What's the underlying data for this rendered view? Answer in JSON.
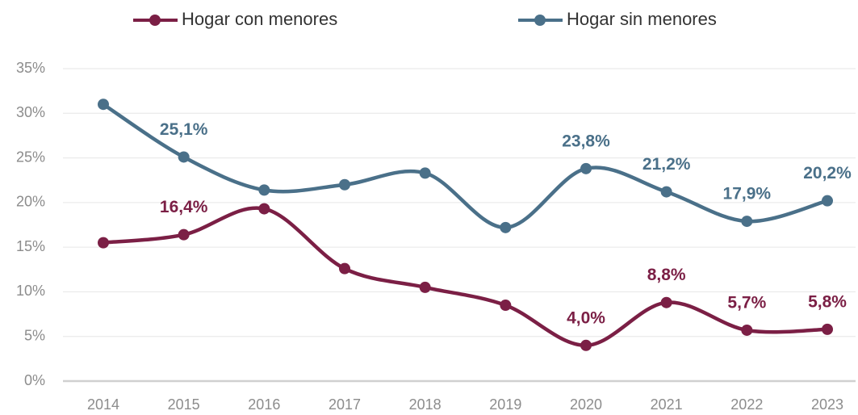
{
  "chart_data": {
    "type": "line",
    "categories": [
      "2014",
      "2015",
      "2016",
      "2017",
      "2018",
      "2019",
      "2020",
      "2021",
      "2022",
      "2023"
    ],
    "series": [
      {
        "name": "Hogar con menores",
        "color": "#7b1f45",
        "values": [
          15.5,
          16.4,
          19.3,
          12.6,
          10.5,
          8.5,
          4.0,
          8.8,
          5.7,
          5.8
        ],
        "value_labels": [
          null,
          "16,4%",
          null,
          null,
          null,
          null,
          "4,0%",
          "8,8%",
          "5,7%",
          "5,8%"
        ]
      },
      {
        "name": "Hogar sin menores",
        "color": "#4a7089",
        "values": [
          31.0,
          25.1,
          21.4,
          22.0,
          23.3,
          17.2,
          23.8,
          21.2,
          17.9,
          20.2
        ],
        "value_labels": [
          null,
          "25,1%",
          null,
          null,
          null,
          null,
          "23,8%",
          "21,2%",
          "17,9%",
          "20,2%"
        ]
      }
    ],
    "ylim": [
      0,
      35
    ],
    "yticks": [
      {
        "value": 0,
        "label": "0%"
      },
      {
        "value": 5,
        "label": "5%"
      },
      {
        "value": 10,
        "label": "10%"
      },
      {
        "value": 15,
        "label": "15%"
      },
      {
        "value": 20,
        "label": "20%"
      },
      {
        "value": 25,
        "label": "25%"
      },
      {
        "value": 30,
        "label": "30%"
      },
      {
        "value": 35,
        "label": "35%"
      }
    ],
    "grid": true,
    "legend": "top",
    "smooth": true
  }
}
